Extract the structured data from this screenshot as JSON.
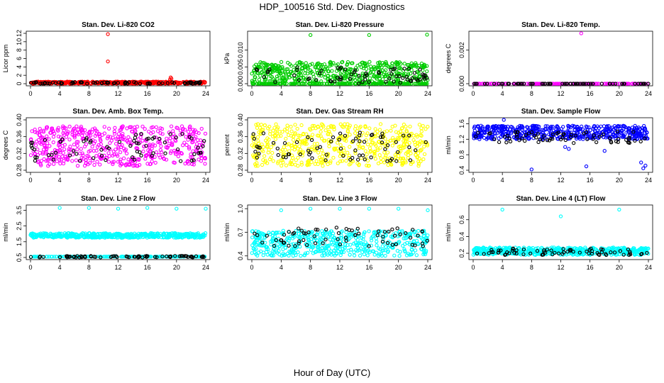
{
  "page": {
    "title": "HDP_100516  Std. Dev. Diagnostics",
    "xlabel": "Hour of Day (UTC)"
  },
  "colors": {
    "red": "#ff0000",
    "green": "#00cc00",
    "magenta": "#ff00ff",
    "yellow": "#ffff00",
    "blue": "#0000ff",
    "cyan": "#00ffff",
    "black": "#000000"
  },
  "chart_data": [
    {
      "type": "scatter",
      "title": "Stan. Dev. Li-820 CO2",
      "ylabel": "Licor ppm",
      "xlim": [
        0,
        24
      ],
      "xticks": [
        "0",
        "4",
        "8",
        "12",
        "16",
        "20",
        "24"
      ],
      "ylim": [
        0,
        12
      ],
      "yticks": [
        "0",
        "2",
        "4",
        "6",
        "8",
        "10",
        "12"
      ],
      "color": "red",
      "band": {
        "low": 0.0,
        "high": 0.5
      },
      "black_band": {
        "low": 0.0,
        "high": 0.4
      },
      "outliers": [
        [
          10.6,
          11.8
        ],
        [
          10.6,
          5.3
        ],
        [
          19.2,
          1.5
        ],
        [
          19.3,
          1.2
        ],
        [
          19.1,
          1.0
        ]
      ]
    },
    {
      "type": "scatter",
      "title": "Stan. Dev. Li-820 Pressure",
      "ylabel": "kPa",
      "xlim": [
        0,
        24
      ],
      "xticks": [
        "0",
        "4",
        "8",
        "12",
        "16",
        "20",
        "24"
      ],
      "ylim": [
        0,
        0.015
      ],
      "yticks": [
        "0.000",
        "0.005",
        "0.010"
      ],
      "color": "green",
      "band": {
        "low": 0.0,
        "high": 0.0065
      },
      "baseline": 0.0,
      "black_band": {
        "low": 0.0,
        "high": 0.005
      },
      "outliers": [
        [
          8.0,
          0.0145
        ],
        [
          16.0,
          0.0145
        ],
        [
          23.9,
          0.0146
        ]
      ]
    },
    {
      "type": "scatter",
      "title": "Stan. Dev. Li-820 Temp.",
      "ylabel": "degrees C",
      "xlim": [
        0,
        24
      ],
      "xticks": [
        "0",
        "4",
        "8",
        "12",
        "16",
        "20",
        "24"
      ],
      "ylim": [
        0,
        0.003
      ],
      "yticks": [
        "0.000",
        "0.002"
      ],
      "color": "magenta",
      "baseline": 0.0,
      "black_band": {
        "low": 0.0,
        "high": 0.0
      },
      "outliers": [
        [
          14.8,
          0.003
        ]
      ]
    },
    {
      "type": "scatter",
      "title": "Stan. Dev. Amb. Box Temp.",
      "ylabel": "degrees C",
      "xlim": [
        0,
        24
      ],
      "xticks": [
        "0",
        "4",
        "8",
        "12",
        "16",
        "20",
        "24"
      ],
      "ylim": [
        0.28,
        0.4
      ],
      "yticks": [
        "0.28",
        "0.32",
        "0.36",
        "0.40"
      ],
      "color": "magenta",
      "band": {
        "low": 0.29,
        "high": 0.385
      },
      "black_band": {
        "low": 0.3,
        "high": 0.37
      },
      "outliers": []
    },
    {
      "type": "scatter",
      "title": "Stan. Dev. Gas Stream RH",
      "ylabel": "percent",
      "xlim": [
        0,
        24
      ],
      "xticks": [
        "0",
        "4",
        "8",
        "12",
        "16",
        "20",
        "24"
      ],
      "ylim": [
        0.28,
        0.4
      ],
      "yticks": [
        "0.28",
        "0.32",
        "0.36",
        "0.40"
      ],
      "color": "yellow",
      "band": {
        "low": 0.29,
        "high": 0.39
      },
      "black_band": {
        "low": 0.3,
        "high": 0.37
      },
      "outliers": []
    },
    {
      "type": "scatter",
      "title": "Stan. Dev. Sample Flow",
      "ylabel": "ml/min",
      "xlim": [
        0,
        24
      ],
      "xticks": [
        "0",
        "4",
        "8",
        "12",
        "16",
        "20",
        "24"
      ],
      "ylim": [
        0.4,
        1.7
      ],
      "yticks": [
        "0.4",
        "0.8",
        "1.2",
        "1.6"
      ],
      "color": "blue",
      "band": {
        "low": 1.2,
        "high": 1.55
      },
      "black_band": {
        "low": 1.1,
        "high": 1.4
      },
      "outliers": [
        [
          4.2,
          1.7
        ],
        [
          8.0,
          0.42
        ],
        [
          15.5,
          0.5
        ],
        [
          23.0,
          0.6
        ],
        [
          23.3,
          0.45
        ],
        [
          23.6,
          0.52
        ],
        [
          12.6,
          1.0
        ],
        [
          13.1,
          0.95
        ],
        [
          18.0,
          0.9
        ]
      ]
    },
    {
      "type": "scatter",
      "title": "Stan. Dev. Line 2 Flow",
      "ylabel": "ml/min",
      "xlim": [
        0,
        24
      ],
      "xticks": [
        "0",
        "4",
        "8",
        "12",
        "16",
        "20",
        "24"
      ],
      "ylim": [
        0.5,
        3.7
      ],
      "yticks": [
        "0.5",
        "1.5",
        "2.5",
        "3.5"
      ],
      "color": "cyan",
      "band": {
        "low": 1.75,
        "high": 2.05
      },
      "baseline": 0.55,
      "black_band": {
        "low": 0.5,
        "high": 0.6
      },
      "outliers": [
        [
          4.0,
          3.65
        ],
        [
          8.0,
          3.65
        ],
        [
          12.0,
          3.6
        ],
        [
          16.0,
          3.65
        ],
        [
          20.0,
          3.6
        ],
        [
          24.0,
          3.6
        ]
      ]
    },
    {
      "type": "scatter",
      "title": "Stan. Dev. Line 3 Flow",
      "ylabel": "ml/min",
      "xlim": [
        0,
        24
      ],
      "xticks": [
        "0",
        "4",
        "8",
        "12",
        "16",
        "20",
        "24"
      ],
      "ylim": [
        0.38,
        1.02
      ],
      "yticks": [
        "0.4",
        "0.7",
        "1.0"
      ],
      "color": "cyan",
      "band": {
        "low": 0.4,
        "high": 0.72
      },
      "black_band": {
        "low": 0.52,
        "high": 0.76
      },
      "outliers": [
        [
          4.0,
          0.98
        ],
        [
          8.0,
          1.0
        ],
        [
          12.0,
          1.0
        ],
        [
          16.0,
          1.0
        ],
        [
          20.0,
          1.0
        ],
        [
          24.0,
          0.98
        ]
      ]
    },
    {
      "type": "scatter",
      "title": "Stan. Dev. Line 4 (LT) Flow",
      "ylabel": "ml/min",
      "xlim": [
        0,
        24
      ],
      "xticks": [
        "0",
        "4",
        "8",
        "12",
        "16",
        "20",
        "24"
      ],
      "ylim": [
        0.15,
        0.75
      ],
      "yticks": [
        "0.2",
        "0.4",
        "0.6"
      ],
      "color": "cyan",
      "band": {
        "low": 0.18,
        "high": 0.27
      },
      "black_band": {
        "low": 0.18,
        "high": 0.26
      },
      "outliers": [
        [
          4.0,
          0.72
        ],
        [
          12.0,
          0.64
        ],
        [
          20.0,
          0.72
        ]
      ]
    }
  ]
}
